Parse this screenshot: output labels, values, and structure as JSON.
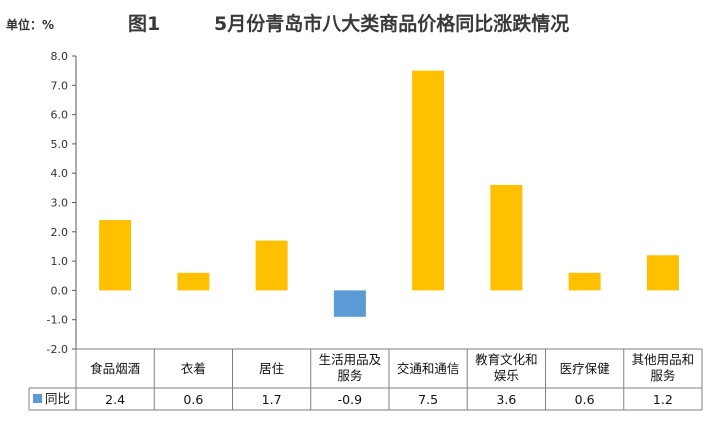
{
  "chart_data": {
    "type": "bar",
    "unit_label": "单位：%",
    "title_prefix": "图1",
    "title": "5月份青岛市八大类商品价格同比涨跌情况",
    "categories": [
      [
        "食品烟酒"
      ],
      [
        "衣着"
      ],
      [
        "居住"
      ],
      [
        "生活用品及",
        "服务"
      ],
      [
        "交通和通信"
      ],
      [
        "教育文化和",
        "娱乐"
      ],
      [
        "医疗保健"
      ],
      [
        "其他用品和",
        "服务"
      ]
    ],
    "series": [
      {
        "name": "同比",
        "values": [
          2.4,
          0.6,
          1.7,
          -0.9,
          7.5,
          3.6,
          0.6,
          1.2
        ]
      }
    ],
    "value_labels": [
      "2.4",
      "0.6",
      "1.7",
      "-0.9",
      "7.5",
      "3.6",
      "0.6",
      "1.2"
    ],
    "ylim": [
      -2.0,
      8.0
    ],
    "yticks": [
      "8.0",
      "7.0",
      "6.0",
      "5.0",
      "4.0",
      "3.0",
      "2.0",
      "1.0",
      "0.0",
      "-1.0",
      "-2.0"
    ],
    "ytick_values": [
      8,
      7,
      6,
      5,
      4,
      3,
      2,
      1,
      0,
      -1,
      -2
    ],
    "grid": false,
    "legend_in_table": true,
    "colors": {
      "positive": "#FFC000",
      "negative": "#5B9BD5",
      "border": "#808080",
      "axis": "#595959"
    }
  }
}
